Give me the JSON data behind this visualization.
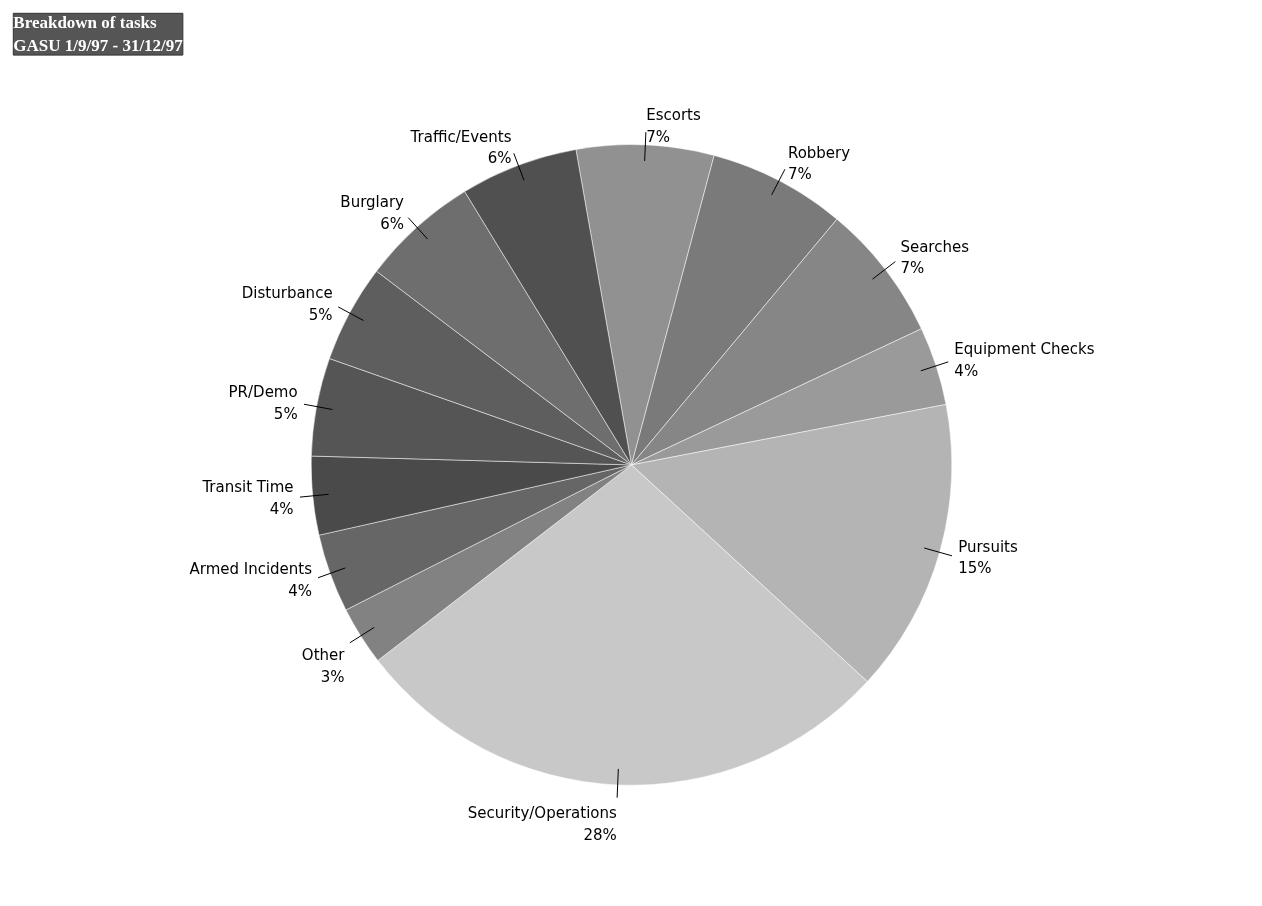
{
  "chart_data": {
    "type": "pie",
    "title": "Breakdown of tasks\nGASU 1/9/97 - 31/12/97",
    "categories": [
      "Escorts",
      "Robbery",
      "Searches",
      "Equipment Checks",
      "Pursuits",
      "Security/Operations",
      "Other",
      "Armed Incidents",
      "Transit Time",
      "PR/Demo",
      "Disturbance",
      "Burglary",
      "Traffic/Events"
    ],
    "values": [
      7,
      7,
      7,
      4,
      15,
      28,
      3,
      4,
      4,
      5,
      5,
      6,
      6
    ],
    "value_labels": [
      "7%",
      "7%",
      "7%",
      "4%",
      "15%",
      "28%",
      "3%",
      "4%",
      "4%",
      "5%",
      "5%",
      "6%",
      "6%"
    ],
    "colors": [
      "#919191",
      "#7a7a7a",
      "#868686",
      "#9a9a9a",
      "#b4b4b4",
      "#c8c8c8",
      "#828282",
      "#666666",
      "#4a4a4a",
      "#555555",
      "#5e5e5e",
      "#6e6e6e",
      "#505050"
    ],
    "legend": false
  }
}
